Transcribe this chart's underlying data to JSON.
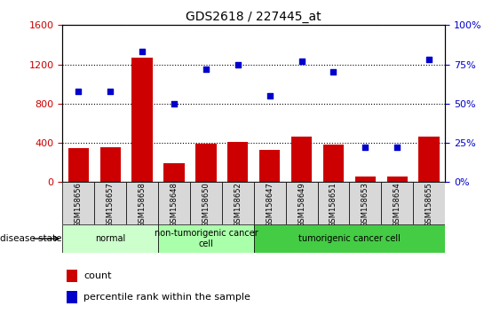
{
  "title": "GDS2618 / 227445_at",
  "categories": [
    "GSM158656",
    "GSM158657",
    "GSM158658",
    "GSM158648",
    "GSM158650",
    "GSM158652",
    "GSM158647",
    "GSM158649",
    "GSM158651",
    "GSM158653",
    "GSM158654",
    "GSM158655"
  ],
  "bar_values": [
    350,
    355,
    1270,
    190,
    390,
    410,
    330,
    460,
    380,
    55,
    55,
    465
  ],
  "dot_values": [
    58,
    58,
    83,
    50,
    72,
    75,
    55,
    77,
    70,
    22,
    22,
    78
  ],
  "ylim_left": [
    0,
    1600
  ],
  "ylim_right": [
    0,
    100
  ],
  "yticks_left": [
    0,
    400,
    800,
    1200,
    1600
  ],
  "yticks_right": [
    0,
    25,
    50,
    75,
    100
  ],
  "bar_color": "#cc0000",
  "dot_color": "#0000cc",
  "disease_groups": [
    {
      "label": "normal",
      "start": 0,
      "end": 3,
      "color": "#ccffcc"
    },
    {
      "label": "non-tumorigenic cancer\ncell",
      "start": 3,
      "end": 6,
      "color": "#aaffaa"
    },
    {
      "label": "tumorigenic cancer cell",
      "start": 6,
      "end": 12,
      "color": "#44cc44"
    }
  ],
  "disease_state_label": "disease state",
  "legend_count": "count",
  "legend_percentile": "percentile rank within the sample",
  "tick_label_color_left": "#cc0000",
  "tick_label_color_right": "#0000cc",
  "background_color": "#ffffff",
  "xlabel_bg_color": "#d8d8d8"
}
